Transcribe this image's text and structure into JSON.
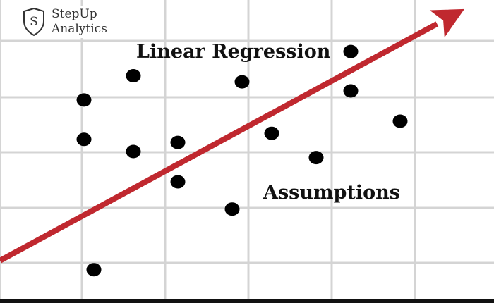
{
  "brand": {
    "initial": "S",
    "line1": "StepUp",
    "line2": "Analytics"
  },
  "chart_data": {
    "type": "scatter",
    "title": "Linear Regression",
    "subtitle": "Assumptions",
    "xlim": [
      0,
      100
    ],
    "ylim": [
      0,
      100
    ],
    "grid": true,
    "points": [
      {
        "x": 17,
        "y": 67
      },
      {
        "x": 17,
        "y": 54
      },
      {
        "x": 19,
        "y": 11
      },
      {
        "x": 27,
        "y": 75
      },
      {
        "x": 27,
        "y": 50
      },
      {
        "x": 36,
        "y": 53
      },
      {
        "x": 36,
        "y": 40
      },
      {
        "x": 47,
        "y": 31
      },
      {
        "x": 49,
        "y": 73
      },
      {
        "x": 55,
        "y": 56
      },
      {
        "x": 64,
        "y": 48
      },
      {
        "x": 71,
        "y": 83
      },
      {
        "x": 71,
        "y": 70
      },
      {
        "x": 81,
        "y": 60
      }
    ],
    "trend": {
      "x1": 0,
      "y1": 14,
      "x2": 94,
      "y2": 97
    },
    "colors": {
      "points": "#000000",
      "trend": "#c0282f",
      "grid": "#d4d4d4"
    }
  }
}
